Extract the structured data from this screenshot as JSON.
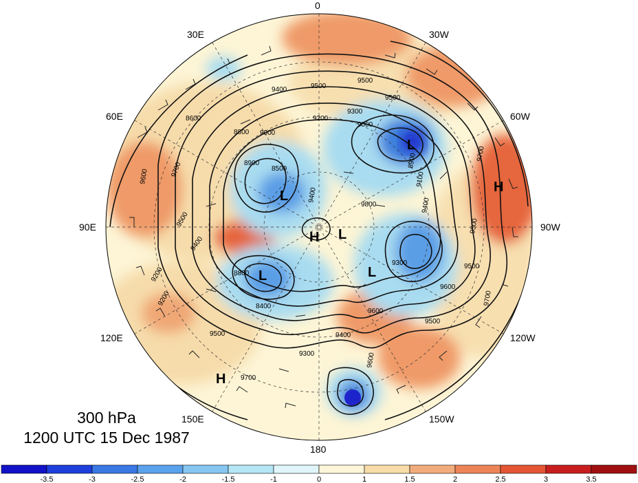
{
  "title": {
    "level": "300 hPa",
    "time": "1200 UTC 15 Dec 1987"
  },
  "map": {
    "projection": "polar stereographic (north pole)",
    "longitude_labels": [
      "0",
      "30E",
      "30W",
      "60E",
      "60W",
      "90E",
      "90W",
      "120E",
      "120W",
      "150E",
      "150W",
      "180"
    ],
    "pressure_centers": [
      "H",
      "H",
      "H",
      "L",
      "L",
      "L",
      "L",
      "L"
    ],
    "contour_labels": [
      "9400",
      "9500",
      "9500",
      "9500",
      "9300",
      "9000",
      "8900",
      "8500",
      "8800",
      "8600",
      "9600",
      "9700",
      "9500",
      "9400",
      "9200",
      "8800",
      "8400",
      "9200",
      "9400",
      "9300",
      "9500",
      "9600",
      "9700",
      "9600",
      "9700",
      "9500",
      "9400",
      "9500",
      "9700",
      "9100",
      "9600",
      "9500",
      "9000",
      "8900",
      "9400",
      "9300",
      "9800",
      "9200"
    ],
    "fill_colors": {
      "deep_blue": "#1818c8",
      "blue": "#3d7fdc",
      "light_blue": "#a9dcf0",
      "pale_yellow": "#fdf5d6",
      "tan": "#f5d9a6",
      "orange": "#ef9a68",
      "red_orange": "#e6663c"
    }
  },
  "colorbar": {
    "tick_labels": [
      "-3.5",
      "-3",
      "-2.5",
      "-2",
      "-1.5",
      "-1",
      "0",
      "1",
      "1.5",
      "2",
      "2.5",
      "3",
      "3.5"
    ],
    "colors": [
      "#1212c8",
      "#1f3fdc",
      "#3a78e4",
      "#5aa2ec",
      "#86c6f0",
      "#b4e6f6",
      "#e0f5fa",
      "#fdf6d8",
      "#f8dca8",
      "#f2ac7c",
      "#ec8458",
      "#e45634",
      "#c81e1e",
      "#a01010"
    ]
  }
}
